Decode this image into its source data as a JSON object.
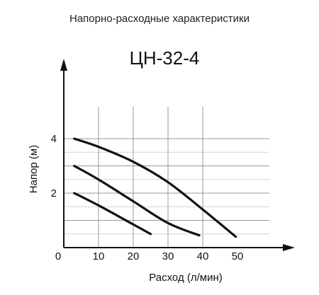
{
  "page": {
    "header": "Напорно-расходные характеристики"
  },
  "chart_data": {
    "type": "line",
    "title": "ЦН-32-4",
    "xlabel": "Расход (л/мин)",
    "ylabel": "Напор (м)",
    "xlim": [
      0,
      50
    ],
    "ylim": [
      0,
      5
    ],
    "origin_label": "0",
    "x_ticks": [
      10,
      20,
      30,
      40,
      50
    ],
    "y_ticks": [
      2,
      4
    ],
    "x_gridlines": [
      10,
      20,
      30,
      40
    ],
    "y_gridlines": [
      1,
      2,
      3,
      4
    ],
    "grid": true,
    "colors": {
      "curve": "#111111",
      "axis": "#111111",
      "grid": "#999999",
      "minor_grid": "#d4d4d4"
    },
    "series": [
      {
        "x": [
          3,
          10,
          20,
          30,
          40,
          49.5
        ],
        "y": [
          4.0,
          3.7,
          3.15,
          2.4,
          1.4,
          0.4
        ]
      },
      {
        "x": [
          3,
          10,
          20,
          30,
          39
        ],
        "y": [
          3.0,
          2.5,
          1.7,
          0.9,
          0.45
        ]
      },
      {
        "x": [
          3,
          10,
          20,
          25
        ],
        "y": [
          2.0,
          1.55,
          0.85,
          0.5
        ]
      }
    ]
  }
}
